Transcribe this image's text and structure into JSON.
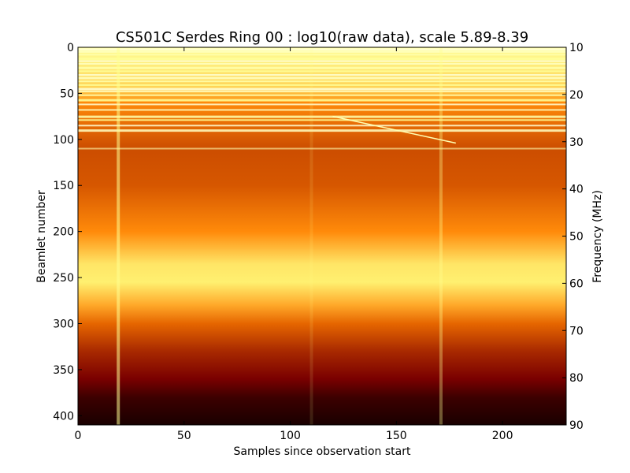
{
  "chart_data": {
    "type": "heatmap",
    "title": "CS501C Serdes Ring 00 : log10(raw data), scale 5.89-8.39",
    "xlabel": "Samples since observation start",
    "ylabel": "Beamlet number",
    "y2label": "Frequency (MHz)",
    "xlim": [
      0,
      230
    ],
    "ylim": [
      410,
      0
    ],
    "y2lim": [
      10,
      90
    ],
    "x_ticks": [
      0,
      50,
      100,
      150,
      200
    ],
    "y_ticks": [
      0,
      50,
      100,
      150,
      200,
      250,
      300,
      350,
      400
    ],
    "y2_ticks": [
      10,
      20,
      30,
      40,
      50,
      60,
      70,
      80,
      90
    ],
    "colormap": "afmhot",
    "value_range": [
      5.89,
      8.39
    ],
    "grid": false,
    "features": {
      "band_profile": [
        {
          "beamlet": 0,
          "level": 0.8
        },
        {
          "beamlet": 45,
          "level": 0.66
        },
        {
          "beamlet": 60,
          "level": 0.52
        },
        {
          "beamlet": 110,
          "level": 0.4
        },
        {
          "beamlet": 150,
          "level": 0.42
        },
        {
          "beamlet": 200,
          "level": 0.52
        },
        {
          "beamlet": 235,
          "level": 0.7
        },
        {
          "beamlet": 255,
          "level": 0.72
        },
        {
          "beamlet": 280,
          "level": 0.58
        },
        {
          "beamlet": 300,
          "level": 0.45
        },
        {
          "beamlet": 330,
          "level": 0.33
        },
        {
          "beamlet": 360,
          "level": 0.24
        },
        {
          "beamlet": 380,
          "level": 0.12
        },
        {
          "beamlet": 410,
          "level": 0.05
        }
      ],
      "vertical_streaks": [
        {
          "sample": 19,
          "strength": 0.55
        },
        {
          "sample": 110,
          "strength": 0.12
        },
        {
          "sample": 171,
          "strength": 0.35
        }
      ],
      "drifting_signal": {
        "start": [
          120,
          75
        ],
        "end": [
          178,
          104
        ]
      },
      "bright_rows": [
        2,
        5,
        8,
        12,
        15,
        18,
        22,
        26,
        30,
        33,
        37,
        41,
        45,
        48,
        52,
        57,
        62,
        68,
        75,
        79,
        85,
        90,
        110
      ]
    },
    "colors": {
      "black": "#000000",
      "dark_red": "#6a0a00",
      "red": "#a02000",
      "orange": "#ff8f10",
      "yellow": "#ffc848",
      "white": "#ffffff"
    }
  }
}
